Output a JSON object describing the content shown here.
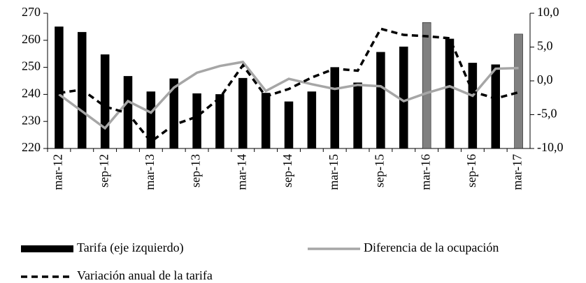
{
  "chart_data": {
    "type": "bar_line",
    "categories": [
      "mar-12",
      null,
      "sep-12",
      null,
      "mar-13",
      null,
      "sep-13",
      null,
      "mar-14",
      null,
      "sep-14",
      null,
      "mar-15",
      null,
      "sep-15",
      null,
      "mar-16",
      null,
      "sep-16",
      null,
      "mar-17"
    ],
    "series": [
      {
        "name": "Tarifa (eje izquierdo)",
        "type": "bar",
        "axis": "y",
        "color": "#000000",
        "colors": [
          "#000000",
          "#000000",
          "#000000",
          "#000000",
          "#000000",
          "#000000",
          "#000000",
          "#000000",
          "#000000",
          "#000000",
          "#000000",
          "#000000",
          "#000000",
          "#000000",
          "#000000",
          "#000000",
          "#808080",
          "#000000",
          "#000000",
          "#000000",
          "#808080"
        ],
        "values": [
          265,
          263,
          254.7,
          246.7,
          241,
          245.8,
          240.3,
          240,
          246,
          240.5,
          237.3,
          241,
          250,
          244.3,
          255.6,
          257.6,
          266.6,
          260.5,
          251.6,
          251,
          262.3
        ]
      },
      {
        "name": "Diferencia de la ocupación",
        "type": "line",
        "axis": "y2",
        "color": "#a6a6a6",
        "dashed": false,
        "values": [
          -2,
          -4.5,
          -7,
          -3,
          -4.7,
          -1,
          1.2,
          2.2,
          2.8,
          -1.5,
          0.3,
          -0.5,
          -1.2,
          -0.6,
          -0.8,
          -3,
          -1.8,
          -0.8,
          -2.2,
          1.8,
          1.9
        ]
      },
      {
        "name": "Variación anual de la tarifa",
        "type": "line",
        "axis": "y2",
        "color": "#000000",
        "dashed": true,
        "values": [
          -1.8,
          -1.3,
          -3.8,
          -4.8,
          -9,
          -6.5,
          -5.3,
          -2.5,
          2.3,
          -2.3,
          -1.2,
          0.5,
          1.8,
          1.5,
          7.7,
          6.8,
          6.6,
          6.3,
          -1.6,
          -2.6,
          -1.7
        ]
      }
    ],
    "ylim": [
      220,
      270
    ],
    "yticks": [
      220,
      230,
      240,
      250,
      260,
      270
    ],
    "y2lim": [
      -10,
      10
    ],
    "y2ticks": [
      {
        "value": -10,
        "label": "-10,0"
      },
      {
        "value": -5,
        "label": "-5,0"
      },
      {
        "value": 0,
        "label": "0,0"
      },
      {
        "value": 5,
        "label": "5,0"
      },
      {
        "value": 10,
        "label": "10,0"
      }
    ],
    "grid": false
  }
}
